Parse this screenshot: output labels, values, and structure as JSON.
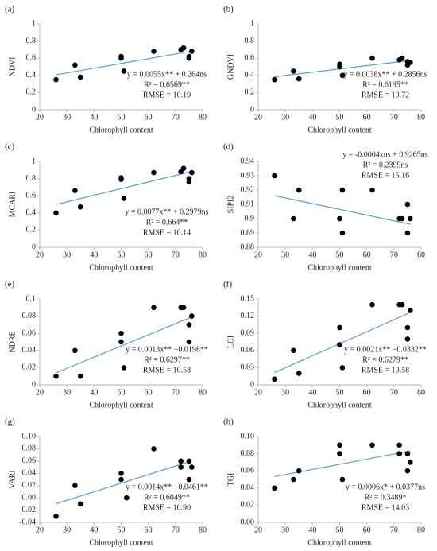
{
  "chart_data": [
    {
      "type": "scatter",
      "panel": "(a)",
      "ylabel": "NDVI",
      "xlabel": "Chlorophyll content",
      "x": [
        26,
        33,
        35,
        50,
        50,
        51,
        62,
        72,
        73,
        75,
        75,
        76
      ],
      "values": [
        0.35,
        0.52,
        0.38,
        0.62,
        0.6,
        0.45,
        0.68,
        0.7,
        0.72,
        0.6,
        0.62,
        0.68
      ],
      "trendline": {
        "slope": 0.0055,
        "intercept": 0.264
      },
      "annotations": [
        "y = 0.0055x** + 0.264ns",
        "R² = 0.6569**",
        "RMSE = 10.19"
      ],
      "annotation_corner": "lower right",
      "xlim": [
        20,
        80
      ],
      "xticks": [
        20,
        30,
        40,
        50,
        60,
        70,
        80
      ],
      "ylim": [
        0,
        1
      ],
      "yticks": [
        0,
        0.2,
        0.4,
        0.6,
        0.8,
        1
      ],
      "color": "#000000",
      "trend_color": "#5b9bd5"
    },
    {
      "type": "scatter",
      "panel": "(b)",
      "ylabel": "GNDVI",
      "xlabel": "Chlorophyll content",
      "x": [
        26,
        33,
        35,
        50,
        50,
        51,
        62,
        72,
        73,
        75,
        75,
        76
      ],
      "values": [
        0.35,
        0.45,
        0.36,
        0.53,
        0.5,
        0.4,
        0.6,
        0.58,
        0.6,
        0.52,
        0.56,
        0.55
      ],
      "trendline": {
        "slope": 0.0038,
        "intercept": 0.2856
      },
      "annotations": [
        "y = 0.0038x** + 0.2856ns",
        "R² = 0.6195**",
        "RMSE = 10.72"
      ],
      "annotation_corner": "lower right",
      "xlim": [
        20,
        80
      ],
      "xticks": [
        20,
        30,
        40,
        50,
        60,
        70,
        80
      ],
      "ylim": [
        0,
        1
      ],
      "yticks": [
        0,
        0.2,
        0.4,
        0.6,
        0.8,
        1
      ],
      "color": "#000000",
      "trend_color": "#5b9bd5"
    },
    {
      "type": "scatter",
      "panel": "(c)",
      "ylabel": "MCARI",
      "xlabel": "Chlorophyll content",
      "x": [
        26,
        33,
        35,
        50,
        50,
        51,
        62,
        72,
        73,
        75,
        75,
        76
      ],
      "values": [
        0.4,
        0.66,
        0.47,
        0.81,
        0.79,
        0.57,
        0.87,
        0.88,
        0.92,
        0.76,
        0.8,
        0.87
      ],
      "trendline": {
        "slope": 0.0077,
        "intercept": 0.2979
      },
      "annotations": [
        "y = 0.0077x** + 0.2979ns",
        "R² = 0.664**",
        "RMSE = 10.14"
      ],
      "annotation_corner": "lower right",
      "xlim": [
        20,
        80
      ],
      "xticks": [
        20,
        30,
        40,
        50,
        60,
        70,
        80
      ],
      "ylim": [
        0,
        1
      ],
      "yticks": [
        0,
        0.2,
        0.4,
        0.6,
        0.8,
        1
      ],
      "color": "#000000",
      "trend_color": "#5b9bd5"
    },
    {
      "type": "scatter",
      "panel": "(d)",
      "ylabel": "SIPI2",
      "xlabel": "Chlorophyll content",
      "x": [
        26,
        33,
        35,
        50,
        51,
        51,
        62,
        72,
        73,
        75,
        75,
        76
      ],
      "values": [
        0.93,
        0.9,
        0.92,
        0.9,
        0.89,
        0.92,
        0.92,
        0.9,
        0.9,
        0.91,
        0.89,
        0.9
      ],
      "trendline": {
        "slope": -0.0004,
        "intercept": 0.9265
      },
      "annotations": [
        "y = -0.0004xns + 0.9265ns",
        "R² = 0.2399ns",
        "RMSE = 15.16"
      ],
      "annotation_corner": "upper right",
      "xlim": [
        20,
        80
      ],
      "xticks": [
        20,
        30,
        40,
        50,
        60,
        70,
        80
      ],
      "ylim": [
        0.88,
        0.94
      ],
      "yticks": [
        0.88,
        0.89,
        0.9,
        0.91,
        0.92,
        0.93,
        0.94
      ],
      "color": "#000000",
      "trend_color": "#5b9bd5"
    },
    {
      "type": "scatter",
      "panel": "(e)",
      "ylabel": "NDRE",
      "xlabel": "Chlorophyll content",
      "x": [
        26,
        33,
        35,
        50,
        50,
        51,
        62,
        72,
        73,
        75,
        75,
        76
      ],
      "values": [
        0.01,
        0.04,
        0.01,
        0.06,
        0.05,
        0.02,
        0.09,
        0.09,
        0.09,
        0.07,
        0.05,
        0.08
      ],
      "trendline": {
        "slope": 0.0013,
        "intercept": -0.0198
      },
      "annotations": [
        "y = 0.0013x** −0.0198**",
        "R² = 0.6297**",
        "RMSE = 10.58"
      ],
      "annotation_corner": "lower right",
      "xlim": [
        20,
        80
      ],
      "xticks": [
        20,
        30,
        40,
        50,
        60,
        70,
        80
      ],
      "ylim": [
        0,
        0.1
      ],
      "yticks": [
        0,
        0.02,
        0.04,
        0.06,
        0.08,
        0.1
      ],
      "color": "#000000",
      "trend_color": "#5b9bd5"
    },
    {
      "type": "scatter",
      "panel": "(f)",
      "ylabel": "LCI",
      "xlabel": "Chlorophyll content",
      "x": [
        26,
        33,
        35,
        50,
        50,
        51,
        62,
        72,
        73,
        75,
        75,
        76
      ],
      "values": [
        0.01,
        0.06,
        0.02,
        0.1,
        0.07,
        0.03,
        0.14,
        0.14,
        0.14,
        0.1,
        0.08,
        0.13
      ],
      "trendline": {
        "slope": 0.0021,
        "intercept": -0.0332
      },
      "annotations": [
        "y = 0.0021x** −0.0332**",
        "R² = 0.6279**",
        "RMSE = 10.58"
      ],
      "annotation_corner": "lower right",
      "xlim": [
        20,
        80
      ],
      "xticks": [
        20,
        30,
        40,
        50,
        60,
        70,
        80
      ],
      "ylim": [
        0,
        0.15
      ],
      "yticks": [
        0,
        0.03,
        0.06,
        0.09,
        0.12,
        0.15
      ],
      "color": "#000000",
      "trend_color": "#5b9bd5"
    },
    {
      "type": "scatter",
      "panel": "(g)",
      "ylabel": "VARI",
      "xlabel": "Chlorophyll content",
      "x": [
        26,
        33,
        35,
        50,
        50,
        52,
        62,
        72,
        72,
        75,
        75,
        76
      ],
      "values": [
        -0.03,
        0.02,
        -0.01,
        0.04,
        0.03,
        0.0,
        0.08,
        0.06,
        0.05,
        0.06,
        0.03,
        0.05
      ],
      "trendline": {
        "slope": 0.0014,
        "intercept": -0.0461
      },
      "annotations": [
        "y = 0.0014x** −0.0461**",
        "R² = 0.6049**",
        "RMSE = 10.90"
      ],
      "annotation_corner": "lower right",
      "xlim": [
        20,
        80
      ],
      "xticks": [
        20,
        30,
        40,
        50,
        60,
        70,
        80
      ],
      "ylim": [
        -0.04,
        0.1
      ],
      "yticks": [
        {
          "value": -0.04,
          "label": "-0.04"
        },
        {
          "value": -0.02,
          "label": "-0.02"
        },
        {
          "value": 0,
          "label": "0.00"
        },
        {
          "value": 0.02,
          "label": "0.02"
        },
        {
          "value": 0.04,
          "label": "0.04"
        },
        {
          "value": 0.06,
          "label": "0.06"
        },
        {
          "value": 0.08,
          "label": "0.08"
        },
        {
          "value": 0.1,
          "label": "0.10"
        }
      ],
      "color": "#000000",
      "trend_color": "#5b9bd5"
    },
    {
      "type": "scatter",
      "panel": "(h)",
      "ylabel": "TGI",
      "xlabel": "Chlorophyll content",
      "x": [
        26,
        33,
        35,
        50,
        50,
        51,
        62,
        72,
        72,
        75,
        75,
        76
      ],
      "values": [
        0.04,
        0.05,
        0.06,
        0.09,
        0.08,
        0.05,
        0.09,
        0.09,
        0.08,
        0.08,
        0.06,
        0.07
      ],
      "trendline": {
        "slope": 0.0006,
        "intercept": 0.0377
      },
      "annotations": [
        "y = 0.0006x* + 0.0377ns",
        "R² = 0.3489*",
        "RMSE = 14.03"
      ],
      "annotation_corner": "lower right",
      "xlim": [
        20,
        80
      ],
      "xticks": [
        20,
        30,
        40,
        50,
        60,
        70,
        80
      ],
      "ylim": [
        0,
        0.1
      ],
      "yticks": [
        {
          "value": 0,
          "label": "0.00"
        },
        {
          "value": 0.02,
          "label": "0.02"
        },
        {
          "value": 0.04,
          "label": "0.04"
        },
        {
          "value": 0.06,
          "label": "0.06"
        },
        {
          "value": 0.08,
          "label": "0.08"
        },
        {
          "value": 0.1,
          "label": "0.10"
        }
      ],
      "color": "#000000",
      "trend_color": "#5b9bd5"
    }
  ]
}
